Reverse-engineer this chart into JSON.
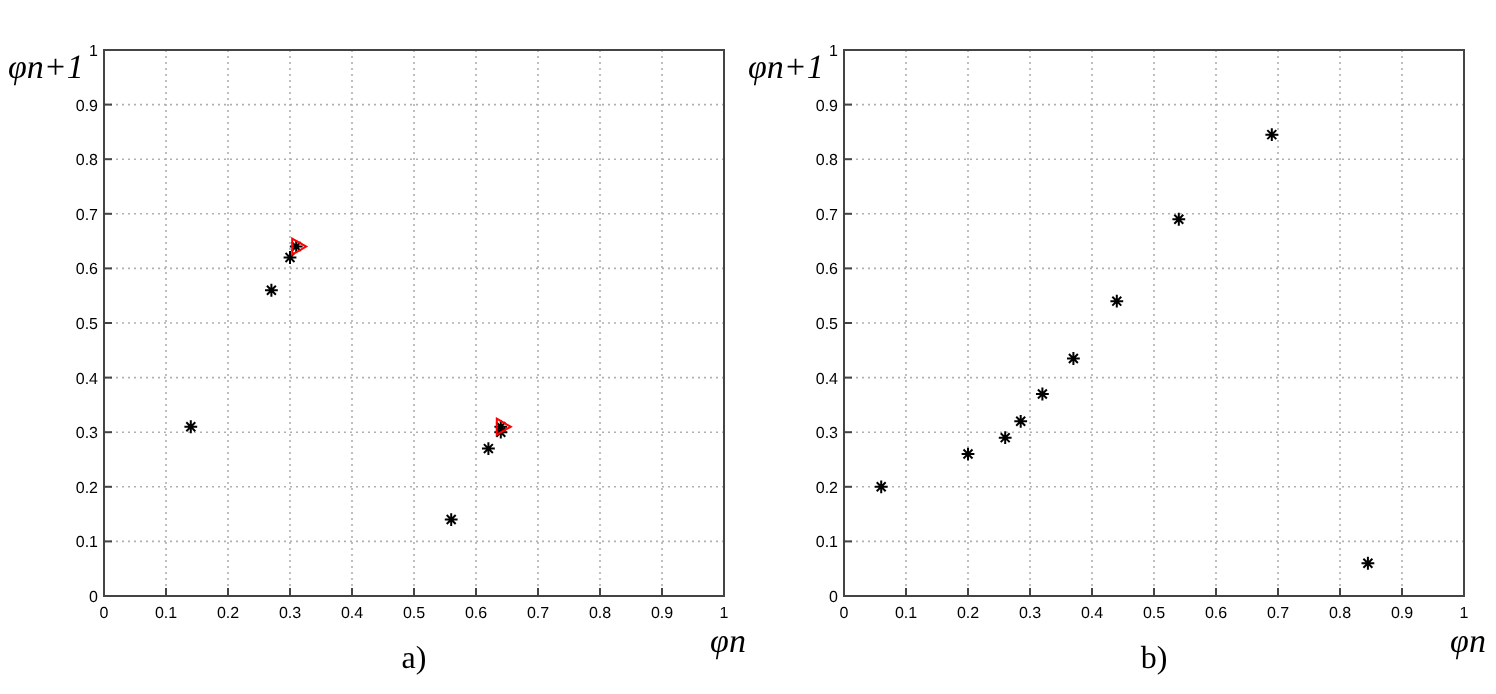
{
  "chart_data": [
    {
      "type": "scatter",
      "title": "a)",
      "xlabel": "φn",
      "ylabel": "φn+1",
      "xlim": [
        0,
        1
      ],
      "ylim": [
        0,
        1
      ],
      "xticks": [
        0,
        0.1,
        0.2,
        0.3,
        0.4,
        0.5,
        0.6,
        0.7,
        0.8,
        0.9,
        1
      ],
      "yticks": [
        0,
        0.1,
        0.2,
        0.3,
        0.4,
        0.5,
        0.6,
        0.7,
        0.8,
        0.9,
        1
      ],
      "grid": true,
      "marker": "cross",
      "series": [
        {
          "color": "#000000",
          "x": [
            0.14,
            0.27,
            0.3,
            0.31,
            0.56,
            0.62,
            0.64,
            0.64
          ],
          "values": [
            0.31,
            0.56,
            0.62,
            0.64,
            0.14,
            0.27,
            0.3,
            0.31
          ]
        },
        {
          "color": "#ff0000",
          "marker": "triangle",
          "x": [
            0.31,
            0.64
          ],
          "values": [
            0.64,
            0.31
          ]
        }
      ]
    },
    {
      "type": "scatter",
      "title": "b)",
      "xlabel": "φn",
      "ylabel": "φn+1",
      "xlim": [
        0,
        1
      ],
      "ylim": [
        0,
        1
      ],
      "xticks": [
        0,
        0.1,
        0.2,
        0.3,
        0.4,
        0.5,
        0.6,
        0.7,
        0.8,
        0.9,
        1
      ],
      "yticks": [
        0,
        0.1,
        0.2,
        0.3,
        0.4,
        0.5,
        0.6,
        0.7,
        0.8,
        0.9,
        1
      ],
      "grid": true,
      "marker": "cross",
      "series": [
        {
          "color": "#000000",
          "x": [
            0.06,
            0.2,
            0.26,
            0.285,
            0.32,
            0.37,
            0.44,
            0.54,
            0.69,
            0.845
          ],
          "values": [
            0.2,
            0.26,
            0.29,
            0.32,
            0.37,
            0.435,
            0.54,
            0.69,
            0.845,
            0.06
          ]
        }
      ]
    }
  ]
}
